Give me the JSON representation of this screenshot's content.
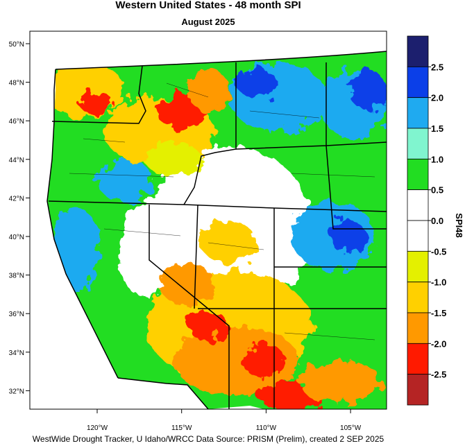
{
  "title": "Western United States - 48 month SPI",
  "subtitle": "August 2025",
  "lat_labels": [
    "50°N",
    "48°N",
    "46°N",
    "44°N",
    "42°N",
    "40°N",
    "38°N",
    "36°N",
    "34°N",
    "32°N"
  ],
  "lon_labels": [
    "120°W",
    "115°W",
    "110°W",
    "105°W"
  ],
  "colorbar": {
    "title": "SPI48",
    "ticks": [
      2.5,
      {
        "value": 2,
        "label": "2.0"
      },
      1.5,
      {
        "value": 1,
        "label": "1.0"
      },
      0.5,
      {
        "value": 0,
        "label": "0.0"
      },
      -0.5,
      {
        "value": -1,
        "label": "-1.0"
      },
      -1.5,
      {
        "value": -2,
        "label": "-2.0"
      },
      -2.5
    ],
    "colors": [
      "#1c1f6e",
      "#0b3fe8",
      "#1faaf0",
      "#80f5cf",
      "#22dd22",
      "#ffffff",
      "#ffffff",
      "#e4f000",
      "#ffd000",
      "#ff9900",
      "#ff1a00",
      "#b52424"
    ]
  },
  "footer": "WestWide Drought Tracker, U Idaho/WRCC Data Source: PRISM (Prelim), created  2 SEP 2025"
}
